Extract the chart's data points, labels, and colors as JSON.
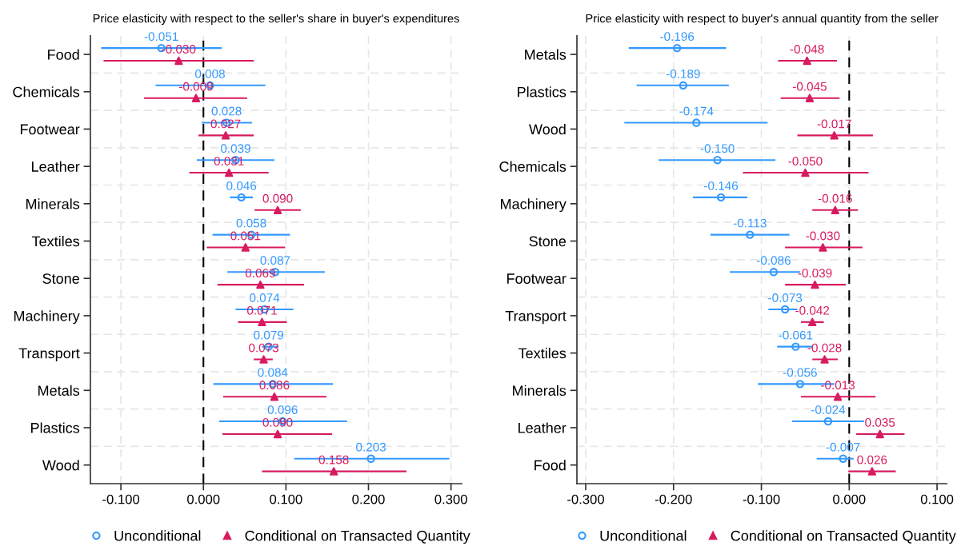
{
  "chart_data": [
    {
      "type": "scatter",
      "orientation": "horizontal",
      "title": "Price elasticity with respect to the seller's share in buyer's expenditures",
      "categories": [
        "Food",
        "Chemicals",
        "Footwear",
        "Leather",
        "Minerals",
        "Textiles",
        "Stone",
        "Machinery",
        "Transport",
        "Metals",
        "Plastics",
        "Wood"
      ],
      "xlim": [
        -0.137,
        0.313
      ],
      "xticks": [
        {
          "value": -0.1,
          "label": "-0.100"
        },
        {
          "value": 0,
          "label": "0.000"
        },
        {
          "value": 0.1,
          "label": "0.100"
        },
        {
          "value": 0.2,
          "label": "0.200"
        },
        {
          "value": 0.3,
          "label": "0.300"
        }
      ],
      "grid": true,
      "legend": "bottom",
      "ref_lines": [
        {
          "axis": "x",
          "value": 0,
          "color": "#000000",
          "line_style": "dashed"
        }
      ],
      "series": [
        {
          "name": "Unconditional",
          "color": "#3399ff",
          "marker": "circle",
          "values": [
            -0.051,
            0.008,
            0.028,
            0.039,
            0.046,
            0.058,
            0.087,
            0.074,
            0.079,
            0.084,
            0.096,
            0.203
          ],
          "value_labels": [
            "-0.051",
            "0.008",
            "0.028",
            "0.039",
            "0.046",
            "0.058",
            "0.087",
            "0.074",
            "0.079",
            "0.084",
            "0.096",
            "0.203"
          ],
          "errors": [
            [
              -0.124,
              0.022
            ],
            [
              -0.058,
              0.075
            ],
            [
              -0.002,
              0.059
            ],
            [
              -0.008,
              0.086
            ],
            [
              0.032,
              0.06
            ],
            [
              0.011,
              0.105
            ],
            [
              0.029,
              0.147
            ],
            [
              0.039,
              0.109
            ],
            [
              0.071,
              0.091
            ],
            [
              0.012,
              0.157
            ],
            [
              0.019,
              0.174
            ],
            [
              0.11,
              0.298
            ]
          ]
        },
        {
          "name": "Conditional on Transacted Quantity",
          "color": "#d81b60",
          "marker": "triangle",
          "values": [
            -0.03,
            -0.009,
            0.027,
            0.031,
            0.09,
            0.051,
            0.069,
            0.071,
            0.073,
            0.086,
            0.09,
            0.158
          ],
          "value_labels": [
            "-0.030",
            "-0.009",
            "0.027",
            "0.031",
            "0.090",
            "0.051",
            "0.069",
            "0.071",
            "0.073",
            "0.086",
            "0.090",
            "0.158"
          ],
          "errors": [
            [
              -0.121,
              0.061
            ],
            [
              -0.072,
              0.053
            ],
            [
              -0.006,
              0.061
            ],
            [
              -0.017,
              0.079
            ],
            [
              0.062,
              0.118
            ],
            [
              0.004,
              0.099
            ],
            [
              0.017,
              0.122
            ],
            [
              0.042,
              0.101
            ],
            [
              0.061,
              0.084
            ],
            [
              0.024,
              0.149
            ],
            [
              0.023,
              0.156
            ],
            [
              0.071,
              0.246
            ]
          ]
        }
      ]
    },
    {
      "type": "scatter",
      "orientation": "horizontal",
      "title": "Price elasticity with respect to buyer's annual quantity from the seller",
      "categories": [
        "Metals",
        "Plastics",
        "Wood",
        "Chemicals",
        "Machinery",
        "Stone",
        "Footwear",
        "Transport",
        "Textiles",
        "Minerals",
        "Leather",
        "Food"
      ],
      "xlim": [
        -0.31,
        0.111
      ],
      "xticks": [
        {
          "value": -0.3,
          "label": "-0.300"
        },
        {
          "value": -0.2,
          "label": "-0.200"
        },
        {
          "value": -0.1,
          "label": "-0.100"
        },
        {
          "value": 0,
          "label": "0.000"
        },
        {
          "value": 0.1,
          "label": "0.100"
        }
      ],
      "grid": true,
      "legend": "bottom",
      "ref_lines": [
        {
          "axis": "x",
          "value": 0,
          "color": "#000000",
          "line_style": "dashed"
        }
      ],
      "series": [
        {
          "name": "Unconditional",
          "color": "#3399ff",
          "marker": "circle",
          "values": [
            -0.196,
            -0.189,
            -0.174,
            -0.15,
            -0.146,
            -0.113,
            -0.086,
            -0.073,
            -0.061,
            -0.056,
            -0.024,
            -0.007
          ],
          "value_labels": [
            "-0.196",
            "-0.189",
            "-0.174",
            "-0.150",
            "-0.146",
            "-0.113",
            "-0.086",
            "-0.073",
            "-0.061",
            "-0.056",
            "-0.024",
            "-0.007"
          ],
          "errors": [
            [
              -0.251,
              -0.14
            ],
            [
              -0.242,
              -0.137
            ],
            [
              -0.256,
              -0.093
            ],
            [
              -0.217,
              -0.084
            ],
            [
              -0.178,
              -0.116
            ],
            [
              -0.158,
              -0.068
            ],
            [
              -0.136,
              -0.056
            ],
            [
              -0.092,
              -0.059
            ],
            [
              -0.082,
              -0.042
            ],
            [
              -0.104,
              -0.017
            ],
            [
              -0.065,
              0.017
            ],
            [
              -0.037,
              0.005
            ]
          ]
        },
        {
          "name": "Conditional on Transacted Quantity",
          "color": "#d81b60",
          "marker": "triangle",
          "values": [
            -0.048,
            -0.045,
            -0.017,
            -0.05,
            -0.016,
            -0.03,
            -0.039,
            -0.042,
            -0.028,
            -0.013,
            0.035,
            0.026
          ],
          "value_labels": [
            "-0.048",
            "-0.045",
            "-0.017",
            "-0.050",
            "-0.016",
            "-0.030",
            "-0.039",
            "-0.042",
            "-0.028",
            "-0.013",
            "0.035",
            "0.026"
          ],
          "errors": [
            [
              -0.081,
              -0.014
            ],
            [
              -0.078,
              -0.011
            ],
            [
              -0.059,
              0.027
            ],
            [
              -0.121,
              0.022
            ],
            [
              -0.042,
              0.01
            ],
            [
              -0.073,
              0.015
            ],
            [
              -0.073,
              -0.004
            ],
            [
              -0.055,
              -0.029
            ],
            [
              -0.042,
              -0.013
            ],
            [
              -0.055,
              0.03
            ],
            [
              0.008,
              0.063
            ],
            [
              -0.001,
              0.053
            ]
          ]
        }
      ]
    }
  ]
}
